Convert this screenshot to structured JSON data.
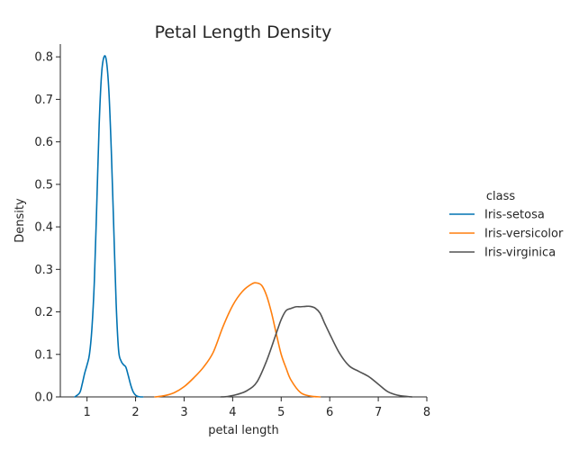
{
  "chart_data": {
    "type": "line",
    "title": "Petal Length Density",
    "xlabel": "petal length",
    "ylabel": "Density",
    "xlim": [
      0.45,
      8.0
    ],
    "ylim": [
      0.0,
      0.83
    ],
    "xticks": [
      "1",
      "2",
      "3",
      "4",
      "5",
      "6",
      "7",
      "8"
    ],
    "xtick_values": [
      1,
      2,
      3,
      4,
      5,
      6,
      7,
      8
    ],
    "yticks": [
      "0.0",
      "0.1",
      "0.2",
      "0.3",
      "0.4",
      "0.5",
      "0.6",
      "0.7",
      "0.8"
    ],
    "ytick_values": [
      0.0,
      0.1,
      0.2,
      0.3,
      0.4,
      0.5,
      0.6,
      0.7,
      0.8
    ],
    "grid": false,
    "legend_placement": "right",
    "legend_title": "class",
    "series": [
      {
        "name": "Iris-setosa",
        "color": "#0173b2",
        "x": [
          0.75,
          0.85,
          0.9,
          0.95,
          1.0,
          1.05,
          1.1,
          1.15,
          1.2,
          1.25,
          1.3,
          1.35,
          1.4,
          1.45,
          1.5,
          1.55,
          1.6,
          1.65,
          1.7,
          1.75,
          1.8,
          1.85,
          1.9,
          1.95,
          2.0,
          2.05,
          2.1,
          2.15
        ],
        "y": [
          0.0,
          0.01,
          0.03,
          0.055,
          0.075,
          0.1,
          0.16,
          0.27,
          0.45,
          0.64,
          0.76,
          0.8,
          0.79,
          0.72,
          0.58,
          0.4,
          0.22,
          0.11,
          0.085,
          0.076,
          0.07,
          0.05,
          0.028,
          0.012,
          0.004,
          0.001,
          0.0,
          0.0
        ]
      },
      {
        "name": "Iris-versicolor",
        "color": "#ff7f0e",
        "x": [
          2.4,
          2.6,
          2.8,
          3.0,
          3.2,
          3.4,
          3.6,
          3.8,
          4.0,
          4.2,
          4.4,
          4.5,
          4.6,
          4.7,
          4.8,
          4.9,
          5.0,
          5.1,
          5.2,
          5.4,
          5.6,
          5.8
        ],
        "y": [
          0.0,
          0.003,
          0.01,
          0.024,
          0.045,
          0.07,
          0.105,
          0.165,
          0.215,
          0.248,
          0.266,
          0.268,
          0.262,
          0.238,
          0.198,
          0.148,
          0.1,
          0.068,
          0.04,
          0.01,
          0.002,
          0.0
        ]
      },
      {
        "name": "Iris-virginica",
        "color": "#525252",
        "x": [
          3.75,
          3.9,
          4.1,
          4.3,
          4.5,
          4.7,
          4.9,
          5.0,
          5.1,
          5.2,
          5.3,
          5.4,
          5.5,
          5.6,
          5.7,
          5.8,
          5.9,
          6.0,
          6.2,
          6.4,
          6.6,
          6.8,
          7.0,
          7.2,
          7.4,
          7.6,
          7.7
        ],
        "y": [
          0.0,
          0.001,
          0.006,
          0.015,
          0.035,
          0.085,
          0.15,
          0.182,
          0.203,
          0.208,
          0.212,
          0.212,
          0.213,
          0.213,
          0.209,
          0.197,
          0.172,
          0.148,
          0.103,
          0.073,
          0.06,
          0.048,
          0.03,
          0.012,
          0.004,
          0.001,
          0.0
        ]
      }
    ]
  }
}
